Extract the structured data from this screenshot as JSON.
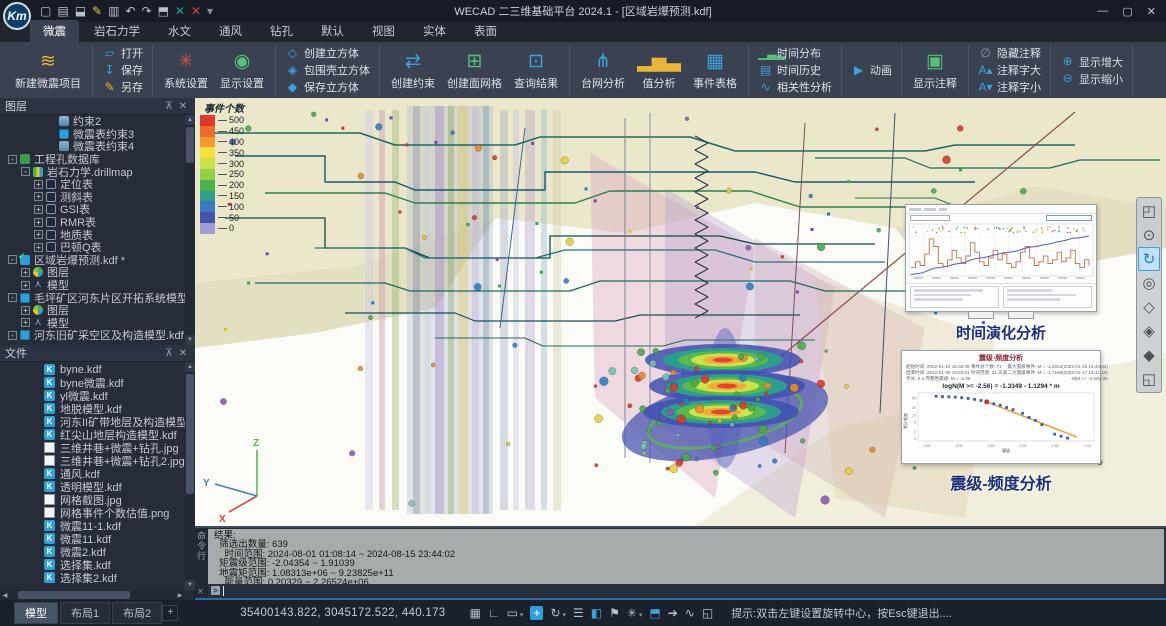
{
  "title_bar": {
    "logo_text": "Km",
    "app_title": "WECAD 二三维基础平台 2024.1 - [区域岩爆预测.kdf]",
    "quick_access": [
      {
        "name": "new-file",
        "glyph": "▢",
        "color": "#b9c0cc"
      },
      {
        "name": "open-folder",
        "glyph": "▤",
        "color": "#b9c0cc"
      },
      {
        "name": "save",
        "glyph": "⬓",
        "color": "#b9c0cc"
      },
      {
        "name": "save-as",
        "glyph": "✎",
        "color": "#e8c14a"
      },
      {
        "name": "print",
        "glyph": "▥",
        "color": "#b9c0cc"
      },
      {
        "name": "undo",
        "glyph": "↶",
        "color": "#b9c0cc"
      },
      {
        "name": "redo",
        "glyph": "↷",
        "color": "#b9c0cc"
      },
      {
        "name": "view-cube",
        "glyph": "⬒",
        "color": "#b9c0cc"
      },
      {
        "name": "close-green",
        "glyph": "✕",
        "color": "#2aa198"
      },
      {
        "name": "close-red",
        "glyph": "✕",
        "color": "#d64541"
      },
      {
        "name": "more-dropdown",
        "glyph": "▾",
        "color": "#8a93a3"
      }
    ],
    "controls": [
      {
        "name": "minimize",
        "glyph": "—"
      },
      {
        "name": "maximize",
        "glyph": "▢"
      },
      {
        "name": "close",
        "glyph": "✕"
      }
    ]
  },
  "menu": {
    "tabs": [
      {
        "label": "微震",
        "active": true
      },
      {
        "label": "岩石力学"
      },
      {
        "label": "水文"
      },
      {
        "label": "通风"
      },
      {
        "label": "钻孔"
      },
      {
        "label": "默认"
      },
      {
        "label": "视图"
      },
      {
        "label": "实体"
      },
      {
        "label": "表面"
      }
    ]
  },
  "ribbon": {
    "groups": [
      {
        "type": "big",
        "items": [
          {
            "label": "新建微震项目",
            "icon": "seismic-project-icon"
          }
        ]
      },
      {
        "type": "stack",
        "items": [
          {
            "label": "打开",
            "icon": "open-folder-icon"
          },
          {
            "label": "保存",
            "icon": "save-icon"
          },
          {
            "label": "另存",
            "icon": "save-as-icon"
          }
        ]
      },
      {
        "type": "big",
        "items": [
          {
            "label": "系统设置",
            "icon": "system-settings-icon"
          },
          {
            "label": "显示设置",
            "icon": "display-settings-icon"
          }
        ]
      },
      {
        "type": "stack",
        "items": [
          {
            "label": "创建立方体",
            "icon": "create-cube-icon"
          },
          {
            "label": "包围壳立方体",
            "icon": "bounding-cube-icon"
          },
          {
            "label": "保存立方体",
            "icon": "save-cube-icon"
          }
        ]
      },
      {
        "type": "big",
        "items": [
          {
            "label": "创建约束",
            "icon": "create-constraint-icon"
          },
          {
            "label": "创建面网格",
            "icon": "create-mesh-icon"
          },
          {
            "label": "查询结果",
            "icon": "query-results-icon"
          }
        ]
      },
      {
        "type": "big",
        "items": [
          {
            "label": "台网分析",
            "icon": "network-analysis-icon"
          },
          {
            "label": "值分析",
            "icon": "value-analysis-icon"
          },
          {
            "label": "事件表格",
            "icon": "event-table-icon"
          }
        ]
      },
      {
        "type": "stack",
        "items": [
          {
            "label": "时间分布",
            "icon": "time-distribution-icon"
          },
          {
            "label": "时间历史",
            "icon": "time-history-icon"
          },
          {
            "label": "相关性分析",
            "icon": "correlation-icon"
          }
        ]
      },
      {
        "type": "stack",
        "items": [
          {
            "label": "动画",
            "icon": "animation-icon"
          }
        ]
      },
      {
        "type": "big",
        "items": [
          {
            "label": "显示注释",
            "icon": "show-annotation-icon"
          }
        ]
      },
      {
        "type": "stack",
        "items": [
          {
            "label": "隐藏注释",
            "icon": "hide-annotation-icon"
          },
          {
            "label": "注释字大",
            "icon": "annotation-larger-icon"
          },
          {
            "label": "注释字小",
            "icon": "annotation-smaller-icon"
          }
        ]
      },
      {
        "type": "stack",
        "items": [
          {
            "label": "显示增大",
            "icon": "display-larger-icon"
          },
          {
            "label": "显示缩小",
            "icon": "display-smaller-icon"
          }
        ]
      }
    ]
  },
  "sidebar": {
    "layers_title": "图层",
    "layers": [
      {
        "label": "约束2",
        "depth": 3,
        "exp": "",
        "icon": "constraint"
      },
      {
        "label": "微震表约束3",
        "depth": 3,
        "exp": "",
        "icon": "table-grid"
      },
      {
        "label": "微震表约束4",
        "depth": 3,
        "exp": "",
        "icon": "constraint"
      },
      {
        "label": "工程孔数据库",
        "depth": 0,
        "exp": "-",
        "icon": "database"
      },
      {
        "label": "岩石力学.drillmap",
        "depth": 1,
        "exp": "-",
        "icon": "drillmap"
      },
      {
        "label": "定位表",
        "depth": 2,
        "exp": "+",
        "icon": "table"
      },
      {
        "label": "测斜表",
        "depth": 2,
        "exp": "+",
        "icon": "table"
      },
      {
        "label": "GSI表",
        "depth": 2,
        "exp": "+",
        "icon": "table"
      },
      {
        "label": "RMR表",
        "depth": 2,
        "exp": "+",
        "icon": "table"
      },
      {
        "label": "地质表",
        "depth": 2,
        "exp": "+",
        "icon": "table"
      },
      {
        "label": "巴顿Q表",
        "depth": 2,
        "exp": "+",
        "icon": "table"
      },
      {
        "label": "区域岩爆预测.kdf *",
        "depth": 0,
        "exp": "-",
        "icon": "model-check"
      },
      {
        "label": "图层",
        "depth": 1,
        "exp": "+",
        "icon": "layers"
      },
      {
        "label": "模型",
        "depth": 1,
        "exp": "+",
        "icon": "model"
      },
      {
        "label": "毛坪矿区河东片区开拓系统模型 (1).k",
        "depth": 0,
        "exp": "-",
        "icon": "table-grid"
      },
      {
        "label": "图层",
        "depth": 1,
        "exp": "+",
        "icon": "layers"
      },
      {
        "label": "模型",
        "depth": 1,
        "exp": "+",
        "icon": "model"
      },
      {
        "label": "河东旧矿采空区及构造模型.kdf *",
        "depth": 0,
        "exp": "-",
        "icon": "table-grid"
      }
    ],
    "files_title": "文件",
    "files": [
      {
        "label": "byne.kdf",
        "type": "kdf"
      },
      {
        "label": "byne微震.kdf",
        "type": "kdf"
      },
      {
        "label": "yl微震.kdf",
        "type": "kdf"
      },
      {
        "label": "地脱模型.kdf",
        "type": "kdf"
      },
      {
        "label": "河东II矿带地层及构造模型.kdf",
        "type": "kdf"
      },
      {
        "label": "红尖山地层构造模型.kdf",
        "type": "kdf"
      },
      {
        "label": "三维井巷+微震+钻孔.jpg",
        "type": "img"
      },
      {
        "label": "三维井巷+微震+钻孔2.jpg",
        "type": "img"
      },
      {
        "label": "通风.kdf",
        "type": "kdf"
      },
      {
        "label": "透明模型.kdf",
        "type": "kdf"
      },
      {
        "label": "网格截图.jpg",
        "type": "img"
      },
      {
        "label": "网格事件个数估值.png",
        "type": "img"
      },
      {
        "label": "微震11-1.kdf",
        "type": "kdf"
      },
      {
        "label": "微震11.kdf",
        "type": "kdf"
      },
      {
        "label": "微震2.kdf",
        "type": "kdf"
      },
      {
        "label": "选择集.kdf",
        "type": "kdf"
      },
      {
        "label": "选择集2.kdf",
        "type": "kdf"
      }
    ]
  },
  "viewport": {
    "legend": {
      "title": "事件个数",
      "ticks": [
        "500",
        "450",
        "400",
        "350",
        "300",
        "250",
        "200",
        "150",
        "100",
        "50",
        "0"
      ],
      "colors": [
        "#e0382b",
        "#ea6c2e",
        "#f2992f",
        "#f4e13c",
        "#cde14a",
        "#93cf48",
        "#4db04a",
        "#2f9e8a",
        "#3a79c0",
        "#4553a8",
        "#9e9ed4"
      ]
    },
    "axis": {
      "x": "X",
      "y": "Y",
      "z": "Z",
      "x_color": "#cc4a3f",
      "y_color": "#4a79c8",
      "z_color": "#59b84c"
    },
    "captions": {
      "time_chart": "时间演化分析",
      "mag_chart": "震级-频度分析"
    },
    "nav_tools": [
      {
        "name": "section-box-icon",
        "glyph": "◰"
      },
      {
        "name": "orbit-icon",
        "glyph": "⊙"
      },
      {
        "name": "rotate-view-icon",
        "glyph": "↻",
        "active": true
      },
      {
        "name": "zoom-icon",
        "glyph": "◎"
      },
      {
        "name": "wireframe-cube-icon",
        "glyph": "◇"
      },
      {
        "name": "hidden-cube-icon",
        "glyph": "◈"
      },
      {
        "name": "shaded-cube-icon",
        "glyph": "◆"
      },
      {
        "name": "zoom-extents-icon",
        "glyph": "◱"
      }
    ],
    "mag_panel": {
      "title": "震级-频度分析",
      "meta_left": [
        "起始时间: 2022-01-10 15:33:49  事件总个数: 71",
        "结束时间: 2022-01-30 15:53:01  时间范围: 21 天",
        "步长: 0.1  完整性震级: M = -2.56"
      ],
      "meta_right": [
        "最大震级事件: M = -1.3022(2022-01-25 15:44:04)",
        "第二大震级事件: M = -1.7166(2022-01-17 16:41:10)",
        "N(M >= -2.56)=36"
      ],
      "formula": "logN(M >= -2.56) = -1.3349 - 1.1294 * m",
      "xlabel": "震级",
      "ylabel": "累计频度",
      "y_ticks": [
        "50",
        "20",
        "10",
        "5",
        "2",
        "1"
      ]
    }
  },
  "chart_data": [
    {
      "id": "time-evolution",
      "type": "line",
      "title": "时间演化分析",
      "xlabel": "时间",
      "ylabel": "事件个数",
      "legend_position": "none",
      "series": [
        {
          "name": "步长内事件数",
          "style": "step",
          "color": "#c0704d",
          "values": [
            8,
            14,
            10,
            22,
            38,
            30,
            12,
            9,
            16,
            26,
            18,
            12,
            20,
            34,
            24,
            14,
            10,
            18,
            26,
            16,
            22,
            12,
            8,
            14,
            24,
            30,
            18,
            10,
            14,
            20,
            12,
            16,
            24,
            14,
            18,
            26,
            12,
            8,
            16,
            10
          ]
        },
        {
          "name": "累计事件数",
          "style": "line",
          "color": "#5b6bbf",
          "values": [
            8,
            22,
            32,
            54,
            92,
            122,
            134,
            143,
            159,
            185,
            203,
            215,
            235,
            269,
            293,
            307,
            317,
            335,
            361,
            377,
            399,
            411,
            419,
            433,
            457,
            487,
            505,
            515,
            529,
            549,
            561,
            577,
            601,
            615,
            633,
            659,
            671,
            679,
            695,
            705
          ]
        }
      ]
    },
    {
      "id": "magnitude-frequency",
      "type": "scatter",
      "title": "震级-频度分析",
      "formula": "logN(M >= -2.56) = -1.3349 - 1.1294 * m",
      "xlabel": "震级",
      "ylabel": "累计频度",
      "x_ticks": [
        "-3.50",
        "-3.00",
        "-2.50",
        "-2.00",
        "-1.50",
        "-1.00"
      ],
      "xlim": [
        -3.6,
        -0.95
      ],
      "ylog": true,
      "points": [
        [
          -3.35,
          62
        ],
        [
          -3.25,
          60
        ],
        [
          -3.15,
          59
        ],
        [
          -3.05,
          57
        ],
        [
          -2.95,
          54
        ],
        [
          -2.85,
          50
        ],
        [
          -2.75,
          46
        ],
        [
          -2.65,
          41
        ],
        [
          -2.56,
          36
        ],
        [
          -2.45,
          30
        ],
        [
          -2.35,
          26
        ],
        [
          -2.25,
          21
        ],
        [
          -2.15,
          17
        ],
        [
          -2.0,
          12
        ],
        [
          -1.9,
          8
        ],
        [
          -1.8,
          6
        ],
        [
          -1.7,
          4
        ],
        [
          -1.5,
          1.6
        ],
        [
          -1.4,
          1.3
        ],
        [
          -1.3,
          1.1
        ]
      ],
      "highlight_point": [
        -2.56,
        36
      ],
      "fit_line": {
        "from": [
          -2.56,
          36
        ],
        "to": [
          -1.15,
          1.2
        ],
        "color": "#e8a33d"
      }
    }
  ],
  "console": {
    "tab": "命令行",
    "lines": [
      "结果:",
      "  筛选出数量: 639",
      "    时间范围: 2024-08-01 01:08:14 ~ 2024-08-15 23:44:02",
      "  矩震级范围: -2.04354 ~ 1.91039",
      "  地震矩范围: 1.08313e+06 ~ 9.23825e+11",
      "    能量范围: 0.20329 ~ 2.26524e+06"
    ],
    "prompt": ">"
  },
  "status_bar": {
    "tabs": [
      {
        "label": "模型",
        "active": true
      },
      {
        "label": "布局1"
      },
      {
        "label": "布局2"
      }
    ],
    "add_tab": "+",
    "coordinates": "35400143.822, 3045172.522, 440.173",
    "icons": [
      {
        "name": "grid-icon",
        "glyph": "▦"
      },
      {
        "name": "ortho-icon",
        "glyph": "∟"
      },
      {
        "name": "object-snap-icon",
        "glyph": "▭",
        "dropdown": true
      },
      {
        "name": "crosshair-icon",
        "glyph": "+",
        "chip": true
      },
      {
        "name": "rotate-icon",
        "glyph": "↻",
        "dropdown": true
      },
      {
        "name": "lineweight-icon",
        "glyph": "☰"
      },
      {
        "name": "brush-icon",
        "glyph": "◧",
        "blue": true
      },
      {
        "name": "annotation-flag-icon",
        "glyph": "⚑"
      },
      {
        "name": "settings-gear-icon",
        "glyph": "✳",
        "dropdown": true
      },
      {
        "name": "solid-cube-icon",
        "glyph": "⬒",
        "blue": true
      },
      {
        "name": "quick-run-icon",
        "glyph": "➔"
      },
      {
        "name": "graph-icon",
        "glyph": "∿"
      },
      {
        "name": "fullscreen-icon",
        "glyph": "◱"
      }
    ],
    "hint": "提示:双击左键设置旋转中心，按Esc键退出...."
  }
}
